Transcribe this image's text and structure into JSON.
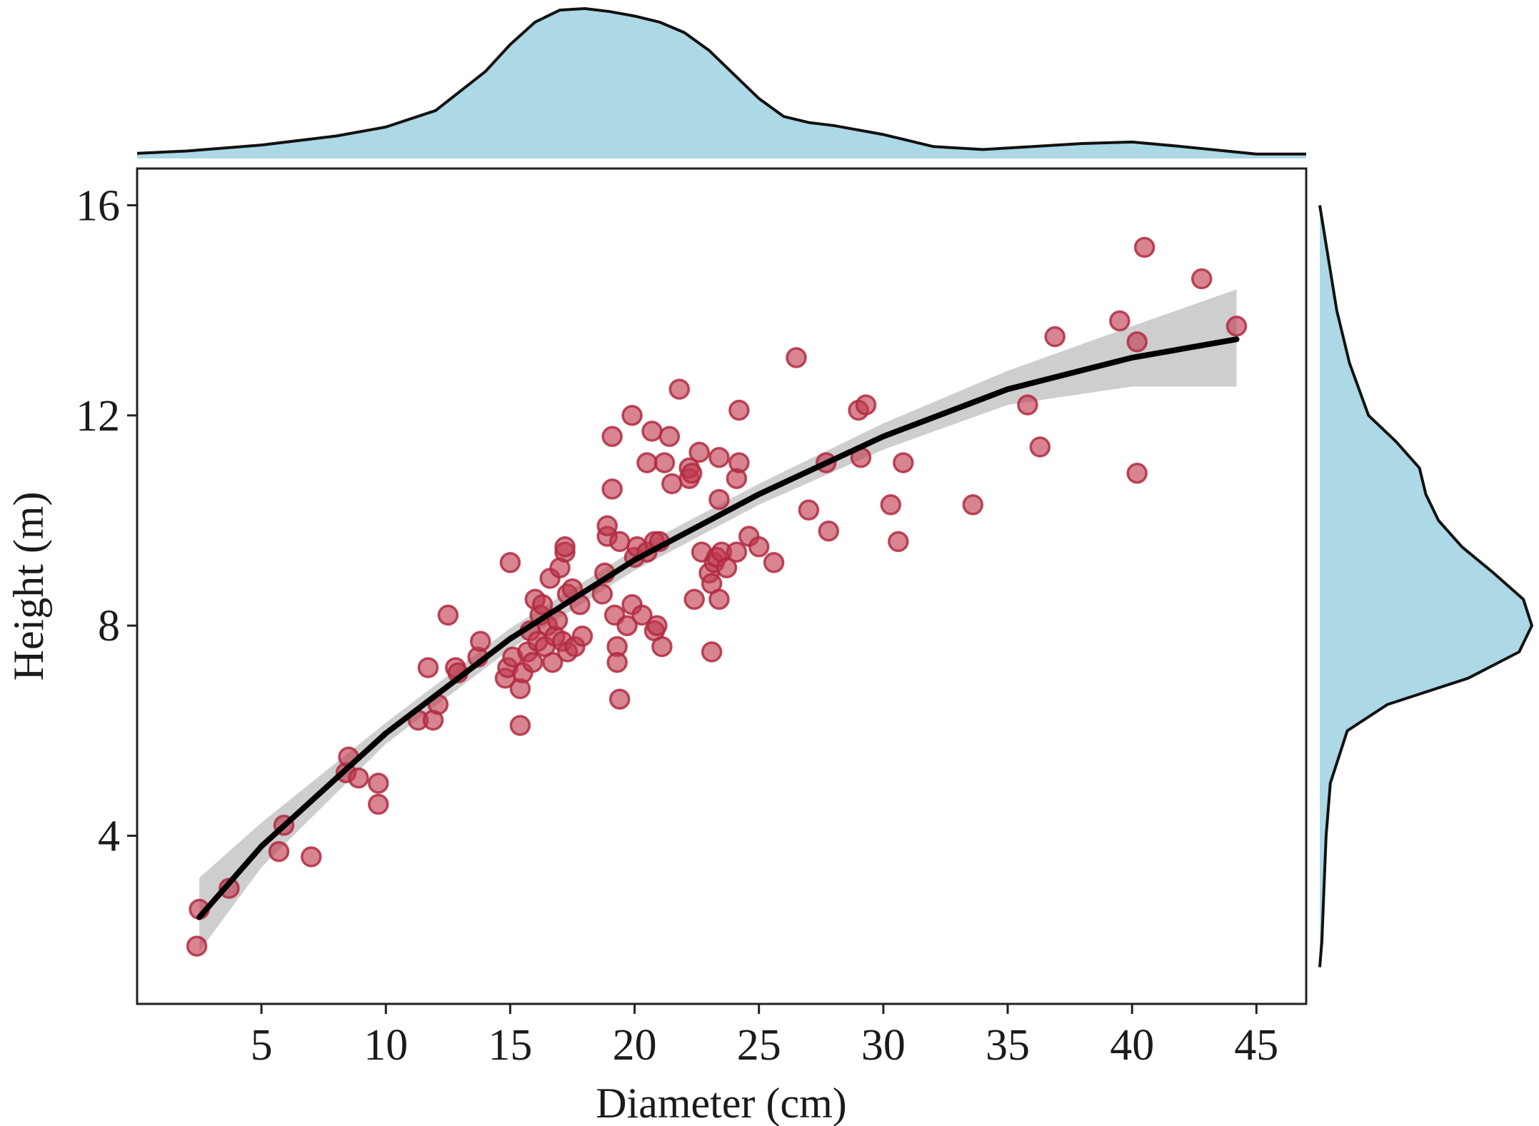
{
  "chart_data": {
    "type": "scatter",
    "xlabel": "Diameter (cm)",
    "ylabel": "Height (m)",
    "xlim": [
      0,
      47
    ],
    "ylim": [
      0.8,
      16.7
    ],
    "xticks": [
      5,
      10,
      15,
      20,
      25,
      30,
      35,
      40,
      45
    ],
    "yticks": [
      4,
      8,
      12,
      16
    ],
    "grid": false,
    "colors": {
      "points_fill": "#c0384e",
      "points_stroke": "#b02a40",
      "fit_line": "#000000",
      "ci_band": "#bdbdbd",
      "density_fill": "#add8e6",
      "density_line": "#111111"
    },
    "points": [
      {
        "x": 2.4,
        "y": 1.9
      },
      {
        "x": 2.5,
        "y": 2.6
      },
      {
        "x": 3.7,
        "y": 3.0
      },
      {
        "x": 5.7,
        "y": 3.7
      },
      {
        "x": 5.9,
        "y": 4.2
      },
      {
        "x": 7.0,
        "y": 3.6
      },
      {
        "x": 8.4,
        "y": 5.2
      },
      {
        "x": 8.5,
        "y": 5.5
      },
      {
        "x": 8.9,
        "y": 5.1
      },
      {
        "x": 9.7,
        "y": 4.6
      },
      {
        "x": 9.7,
        "y": 5.0
      },
      {
        "x": 11.3,
        "y": 6.2
      },
      {
        "x": 11.7,
        "y": 7.2
      },
      {
        "x": 11.9,
        "y": 6.2
      },
      {
        "x": 12.1,
        "y": 6.5
      },
      {
        "x": 12.5,
        "y": 8.2
      },
      {
        "x": 12.8,
        "y": 7.2
      },
      {
        "x": 12.9,
        "y": 7.1
      },
      {
        "x": 13.7,
        "y": 7.4
      },
      {
        "x": 13.8,
        "y": 7.7
      },
      {
        "x": 14.8,
        "y": 7.0
      },
      {
        "x": 14.9,
        "y": 7.2
      },
      {
        "x": 15.0,
        "y": 9.2
      },
      {
        "x": 15.1,
        "y": 7.4
      },
      {
        "x": 15.4,
        "y": 6.1
      },
      {
        "x": 15.4,
        "y": 6.8
      },
      {
        "x": 15.5,
        "y": 7.1
      },
      {
        "x": 15.7,
        "y": 7.5
      },
      {
        "x": 15.9,
        "y": 7.3
      },
      {
        "x": 15.8,
        "y": 7.9
      },
      {
        "x": 16.0,
        "y": 8.5
      },
      {
        "x": 16.1,
        "y": 7.7
      },
      {
        "x": 16.2,
        "y": 8.2
      },
      {
        "x": 16.3,
        "y": 8.4
      },
      {
        "x": 16.4,
        "y": 7.6
      },
      {
        "x": 16.5,
        "y": 8.0
      },
      {
        "x": 16.6,
        "y": 8.9
      },
      {
        "x": 16.7,
        "y": 7.3
      },
      {
        "x": 16.8,
        "y": 7.8
      },
      {
        "x": 16.9,
        "y": 8.1
      },
      {
        "x": 17.0,
        "y": 9.1
      },
      {
        "x": 17.1,
        "y": 7.7
      },
      {
        "x": 17.2,
        "y": 9.4
      },
      {
        "x": 17.2,
        "y": 9.5
      },
      {
        "x": 17.3,
        "y": 8.6
      },
      {
        "x": 17.3,
        "y": 7.5
      },
      {
        "x": 17.5,
        "y": 8.7
      },
      {
        "x": 17.6,
        "y": 7.6
      },
      {
        "x": 17.8,
        "y": 8.4
      },
      {
        "x": 17.9,
        "y": 7.8
      },
      {
        "x": 18.7,
        "y": 8.6
      },
      {
        "x": 18.8,
        "y": 9.0
      },
      {
        "x": 18.9,
        "y": 9.7
      },
      {
        "x": 18.9,
        "y": 9.9
      },
      {
        "x": 19.1,
        "y": 10.6
      },
      {
        "x": 19.1,
        "y": 11.6
      },
      {
        "x": 19.2,
        "y": 8.2
      },
      {
        "x": 19.3,
        "y": 7.6
      },
      {
        "x": 19.3,
        "y": 7.3
      },
      {
        "x": 19.4,
        "y": 9.6
      },
      {
        "x": 19.4,
        "y": 6.6
      },
      {
        "x": 19.7,
        "y": 8.0
      },
      {
        "x": 19.9,
        "y": 8.4
      },
      {
        "x": 19.9,
        "y": 12.0
      },
      {
        "x": 20.0,
        "y": 9.3
      },
      {
        "x": 20.1,
        "y": 9.5
      },
      {
        "x": 20.3,
        "y": 8.2
      },
      {
        "x": 20.5,
        "y": 9.4
      },
      {
        "x": 20.5,
        "y": 11.1
      },
      {
        "x": 20.7,
        "y": 11.7
      },
      {
        "x": 20.8,
        "y": 9.6
      },
      {
        "x": 20.8,
        "y": 7.9
      },
      {
        "x": 20.9,
        "y": 8.0
      },
      {
        "x": 21.0,
        "y": 9.6
      },
      {
        "x": 21.1,
        "y": 7.6
      },
      {
        "x": 21.2,
        "y": 11.1
      },
      {
        "x": 21.4,
        "y": 11.6
      },
      {
        "x": 21.5,
        "y": 10.7
      },
      {
        "x": 21.8,
        "y": 12.5
      },
      {
        "x": 22.2,
        "y": 10.8
      },
      {
        "x": 22.2,
        "y": 11.0
      },
      {
        "x": 22.3,
        "y": 10.9
      },
      {
        "x": 22.4,
        "y": 8.5
      },
      {
        "x": 22.6,
        "y": 11.3
      },
      {
        "x": 22.7,
        "y": 9.4
      },
      {
        "x": 23.0,
        "y": 9.0
      },
      {
        "x": 23.1,
        "y": 7.5
      },
      {
        "x": 23.1,
        "y": 8.8
      },
      {
        "x": 23.2,
        "y": 9.2
      },
      {
        "x": 23.3,
        "y": 9.3
      },
      {
        "x": 23.4,
        "y": 8.5
      },
      {
        "x": 23.4,
        "y": 10.4
      },
      {
        "x": 23.4,
        "y": 11.2
      },
      {
        "x": 23.5,
        "y": 9.4
      },
      {
        "x": 23.7,
        "y": 9.1
      },
      {
        "x": 24.1,
        "y": 9.4
      },
      {
        "x": 24.1,
        "y": 10.8
      },
      {
        "x": 24.2,
        "y": 11.1
      },
      {
        "x": 24.2,
        "y": 12.1
      },
      {
        "x": 24.6,
        "y": 9.7
      },
      {
        "x": 25.0,
        "y": 9.5
      },
      {
        "x": 25.6,
        "y": 9.2
      },
      {
        "x": 26.5,
        "y": 13.1
      },
      {
        "x": 27.0,
        "y": 10.2
      },
      {
        "x": 27.7,
        "y": 11.1
      },
      {
        "x": 27.8,
        "y": 9.8
      },
      {
        "x": 29.0,
        "y": 12.1
      },
      {
        "x": 29.1,
        "y": 11.2
      },
      {
        "x": 29.3,
        "y": 12.2
      },
      {
        "x": 30.3,
        "y": 10.3
      },
      {
        "x": 30.6,
        "y": 9.6
      },
      {
        "x": 30.8,
        "y": 11.1
      },
      {
        "x": 33.6,
        "y": 10.3
      },
      {
        "x": 35.8,
        "y": 12.2
      },
      {
        "x": 36.3,
        "y": 11.4
      },
      {
        "x": 36.9,
        "y": 13.5
      },
      {
        "x": 39.5,
        "y": 13.8
      },
      {
        "x": 40.2,
        "y": 10.9
      },
      {
        "x": 40.2,
        "y": 13.4
      },
      {
        "x": 40.5,
        "y": 15.2
      },
      {
        "x": 42.8,
        "y": 14.6
      },
      {
        "x": 44.2,
        "y": 13.7
      }
    ],
    "fit": {
      "x": [
        2.5,
        5,
        10,
        15,
        20,
        25,
        30,
        35,
        40,
        44.2
      ],
      "y": [
        2.45,
        3.8,
        5.95,
        7.75,
        9.25,
        10.5,
        11.6,
        12.5,
        13.1,
        13.45
      ],
      "lower": [
        1.8,
        3.4,
        5.75,
        7.55,
        9.05,
        10.3,
        11.35,
        12.2,
        12.55,
        12.55
      ],
      "upper": [
        3.2,
        4.25,
        6.15,
        7.95,
        9.45,
        10.7,
        11.85,
        12.85,
        13.7,
        14.4
      ]
    },
    "density_x": {
      "x": [
        0,
        2,
        5,
        8,
        10,
        12,
        14,
        15,
        16,
        17,
        18,
        19,
        20,
        21,
        22,
        23,
        24,
        25,
        26,
        27,
        28,
        30,
        32,
        34,
        36,
        38,
        40,
        42,
        45,
        47
      ],
      "d": [
        0.035,
        0.05,
        0.09,
        0.15,
        0.21,
        0.32,
        0.58,
        0.76,
        0.91,
        0.99,
        1.0,
        0.98,
        0.95,
        0.91,
        0.84,
        0.72,
        0.56,
        0.4,
        0.28,
        0.24,
        0.22,
        0.16,
        0.08,
        0.06,
        0.08,
        0.1,
        0.11,
        0.08,
        0.03,
        0.03
      ]
    },
    "density_y": {
      "y": [
        1.5,
        2,
        3,
        4,
        5,
        6,
        6.5,
        7,
        7.5,
        8,
        8.5,
        9,
        9.5,
        10,
        10.5,
        11,
        11.5,
        12,
        13,
        14,
        15,
        16
      ],
      "d": [
        0.0,
        0.01,
        0.02,
        0.03,
        0.05,
        0.13,
        0.32,
        0.7,
        0.94,
        1.0,
        0.96,
        0.82,
        0.67,
        0.56,
        0.5,
        0.47,
        0.36,
        0.23,
        0.14,
        0.08,
        0.04,
        0.0
      ]
    }
  }
}
